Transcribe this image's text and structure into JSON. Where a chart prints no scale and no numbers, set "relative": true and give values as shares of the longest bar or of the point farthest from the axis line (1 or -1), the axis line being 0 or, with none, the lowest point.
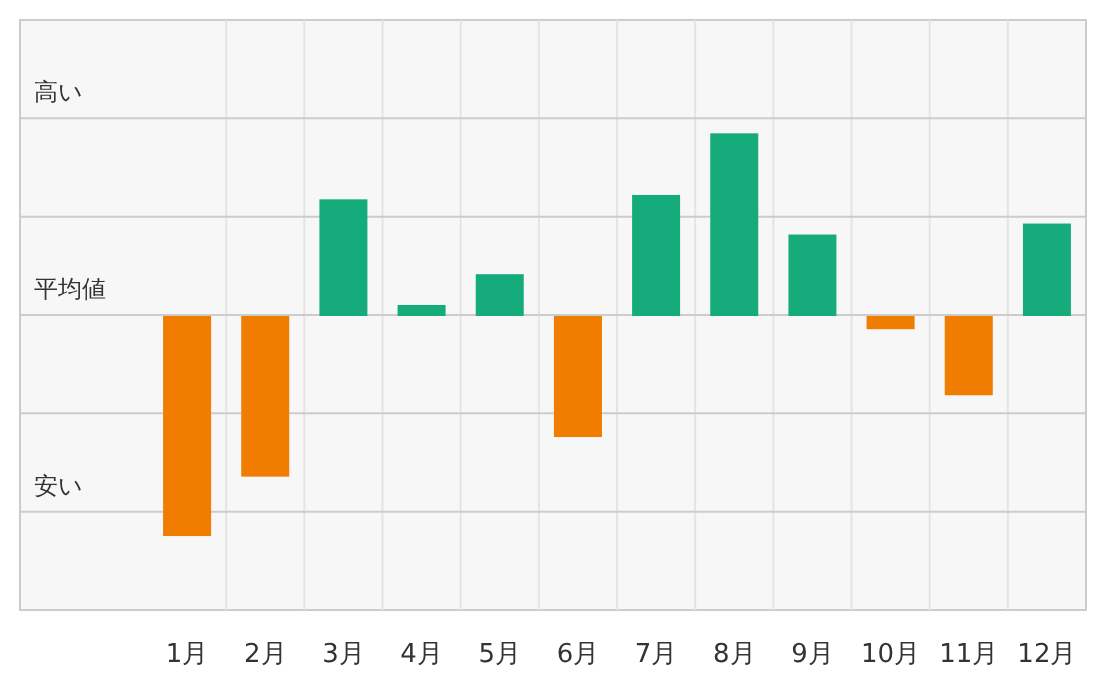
{
  "chart_data": {
    "type": "bar",
    "relative": true,
    "grid": true,
    "categories": [
      "1月",
      "2月",
      "3月",
      "4月",
      "5月",
      "6月",
      "7月",
      "8月",
      "9月",
      "10月",
      "11月",
      "12月"
    ],
    "values": [
      -1,
      -0.73,
      0.53,
      0.05,
      0.19,
      -0.55,
      0.55,
      0.83,
      0.37,
      -0.06,
      -0.36,
      0.42
    ],
    "colors": [
      "#f07c00",
      "#f07c00",
      "#16ab7a",
      "#16ab7a",
      "#16ab7a",
      "#f07c00",
      "#16ab7a",
      "#16ab7a",
      "#16ab7a",
      "#f07c00",
      "#f07c00",
      "#16ab7a"
    ],
    "annotations": [
      "高い",
      "平均値",
      "安い"
    ]
  }
}
